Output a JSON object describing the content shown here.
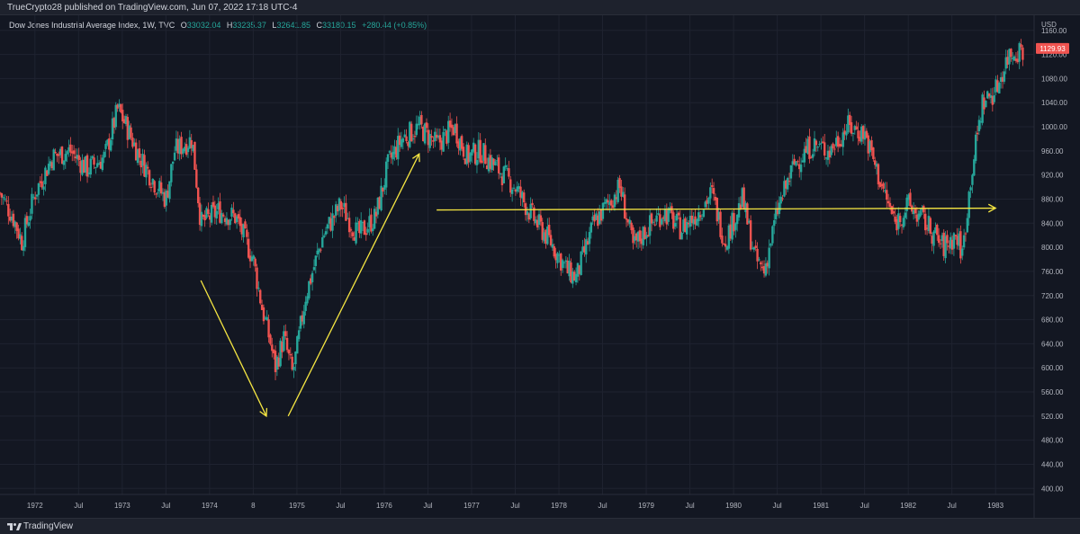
{
  "header": {
    "published": "TrueCrypto28 published on TradingView.com, Jun 07, 2022 17:18 UTC-4"
  },
  "legend": {
    "symbol": "Dow Jones Industrial Average Index, 1W, TVC",
    "o_label": "O",
    "o_value": "33032.04",
    "h_label": "H",
    "h_value": "33235.37",
    "l_label": "L",
    "l_value": "32641.85",
    "c_label": "C",
    "c_value": "33180.15",
    "change": "+280.44 (+0.85%)"
  },
  "footer": {
    "brand": "TradingView"
  },
  "colors": {
    "bg": "#131722",
    "up": "#26a69a",
    "down": "#ef5350",
    "annotation": "#f5e642",
    "grid": "#1f2330"
  },
  "icons": {
    "logo": "tradingview-logo-icon"
  },
  "chart_data": {
    "type": "candlestick",
    "currency_label": "USD",
    "last_price_label": "1129.93",
    "last_price": 1129.93,
    "ylim": [
      390,
      1185
    ],
    "y_ticks": [
      400,
      440,
      480,
      520,
      560,
      600,
      640,
      680,
      720,
      760,
      800,
      840,
      880,
      920,
      960,
      1000,
      1040,
      1080,
      1120,
      1160
    ],
    "y_tick_labels": [
      "400.00",
      "440.00",
      "480.00",
      "520.00",
      "560.00",
      "600.00",
      "640.00",
      "680.00",
      "720.00",
      "760.00",
      "800.00",
      "840.00",
      "880.00",
      "920.00",
      "960.00",
      "1000.00",
      "1040.00",
      "1080.00",
      "1120.00",
      "1160.00"
    ],
    "x_range": [
      1971.6,
      1983.4
    ],
    "x_ticks": [
      {
        "t": 1972.0,
        "label": "1972"
      },
      {
        "t": 1972.5,
        "label": "Jul"
      },
      {
        "t": 1973.0,
        "label": "1973"
      },
      {
        "t": 1973.5,
        "label": "Jul"
      },
      {
        "t": 1974.0,
        "label": "1974"
      },
      {
        "t": 1974.5,
        "label": "8"
      },
      {
        "t": 1975.0,
        "label": "1975"
      },
      {
        "t": 1975.5,
        "label": "Jul"
      },
      {
        "t": 1976.0,
        "label": "1976"
      },
      {
        "t": 1976.5,
        "label": "Jul"
      },
      {
        "t": 1977.0,
        "label": "1977"
      },
      {
        "t": 1977.5,
        "label": "Jul"
      },
      {
        "t": 1978.0,
        "label": "1978"
      },
      {
        "t": 1978.5,
        "label": "Jul"
      },
      {
        "t": 1979.0,
        "label": "1979"
      },
      {
        "t": 1979.5,
        "label": "Jul"
      },
      {
        "t": 1980.0,
        "label": "1980"
      },
      {
        "t": 1980.5,
        "label": "Jul"
      },
      {
        "t": 1981.0,
        "label": "1981"
      },
      {
        "t": 1981.5,
        "label": "Jul"
      },
      {
        "t": 1982.0,
        "label": "1982"
      },
      {
        "t": 1982.5,
        "label": "Jul"
      },
      {
        "t": 1983.0,
        "label": "1983"
      }
    ],
    "price_path": [
      {
        "t": 1971.6,
        "p": 890
      },
      {
        "t": 1971.75,
        "p": 850
      },
      {
        "t": 1971.85,
        "p": 810
      },
      {
        "t": 1972.0,
        "p": 890
      },
      {
        "t": 1972.2,
        "p": 950
      },
      {
        "t": 1972.4,
        "p": 960
      },
      {
        "t": 1972.6,
        "p": 930
      },
      {
        "t": 1972.8,
        "p": 950
      },
      {
        "t": 1972.95,
        "p": 1030
      },
      {
        "t": 1973.05,
        "p": 1000
      },
      {
        "t": 1973.2,
        "p": 950
      },
      {
        "t": 1973.4,
        "p": 900
      },
      {
        "t": 1973.5,
        "p": 880
      },
      {
        "t": 1973.6,
        "p": 960
      },
      {
        "t": 1973.8,
        "p": 980
      },
      {
        "t": 1973.9,
        "p": 840
      },
      {
        "t": 1974.1,
        "p": 860
      },
      {
        "t": 1974.3,
        "p": 850
      },
      {
        "t": 1974.5,
        "p": 780
      },
      {
        "t": 1974.6,
        "p": 700
      },
      {
        "t": 1974.7,
        "p": 640
      },
      {
        "t": 1974.75,
        "p": 600
      },
      {
        "t": 1974.85,
        "p": 650
      },
      {
        "t": 1974.95,
        "p": 590
      },
      {
        "t": 1975.0,
        "p": 630
      },
      {
        "t": 1975.1,
        "p": 720
      },
      {
        "t": 1975.3,
        "p": 820
      },
      {
        "t": 1975.5,
        "p": 870
      },
      {
        "t": 1975.7,
        "p": 820
      },
      {
        "t": 1975.9,
        "p": 850
      },
      {
        "t": 1976.05,
        "p": 940
      },
      {
        "t": 1976.2,
        "p": 980
      },
      {
        "t": 1976.4,
        "p": 1000
      },
      {
        "t": 1976.6,
        "p": 970
      },
      {
        "t": 1976.8,
        "p": 1000
      },
      {
        "t": 1976.95,
        "p": 950
      },
      {
        "t": 1977.1,
        "p": 960
      },
      {
        "t": 1977.3,
        "p": 930
      },
      {
        "t": 1977.5,
        "p": 900
      },
      {
        "t": 1977.7,
        "p": 850
      },
      {
        "t": 1977.9,
        "p": 810
      },
      {
        "t": 1978.1,
        "p": 760
      },
      {
        "t": 1978.2,
        "p": 750
      },
      {
        "t": 1978.4,
        "p": 840
      },
      {
        "t": 1978.6,
        "p": 880
      },
      {
        "t": 1978.7,
        "p": 900
      },
      {
        "t": 1978.85,
        "p": 800
      },
      {
        "t": 1979.0,
        "p": 830
      },
      {
        "t": 1979.2,
        "p": 860
      },
      {
        "t": 1979.4,
        "p": 830
      },
      {
        "t": 1979.6,
        "p": 860
      },
      {
        "t": 1979.75,
        "p": 890
      },
      {
        "t": 1979.9,
        "p": 810
      },
      {
        "t": 1980.1,
        "p": 880
      },
      {
        "t": 1980.25,
        "p": 780
      },
      {
        "t": 1980.35,
        "p": 760
      },
      {
        "t": 1980.5,
        "p": 860
      },
      {
        "t": 1980.7,
        "p": 940
      },
      {
        "t": 1980.9,
        "p": 970
      },
      {
        "t": 1981.1,
        "p": 960
      },
      {
        "t": 1981.3,
        "p": 1000
      },
      {
        "t": 1981.5,
        "p": 990
      },
      {
        "t": 1981.7,
        "p": 900
      },
      {
        "t": 1981.85,
        "p": 840
      },
      {
        "t": 1982.0,
        "p": 870
      },
      {
        "t": 1982.2,
        "p": 840
      },
      {
        "t": 1982.4,
        "p": 800
      },
      {
        "t": 1982.55,
        "p": 820
      },
      {
        "t": 1982.62,
        "p": 790
      },
      {
        "t": 1982.72,
        "p": 920
      },
      {
        "t": 1982.85,
        "p": 1040
      },
      {
        "t": 1983.0,
        "p": 1060
      },
      {
        "t": 1983.15,
        "p": 1120
      },
      {
        "t": 1983.3,
        "p": 1130
      }
    ],
    "annotations": [
      {
        "type": "arrow",
        "from": {
          "t": 1973.9,
          "p": 745
        },
        "to": {
          "t": 1974.65,
          "p": 520
        }
      },
      {
        "type": "arrow",
        "from": {
          "t": 1974.9,
          "p": 520
        },
        "to": {
          "t": 1976.4,
          "p": 955
        }
      },
      {
        "type": "arrow",
        "from": {
          "t": 1976.6,
          "p": 862
        },
        "to": {
          "t": 1983.0,
          "p": 865
        }
      }
    ]
  }
}
